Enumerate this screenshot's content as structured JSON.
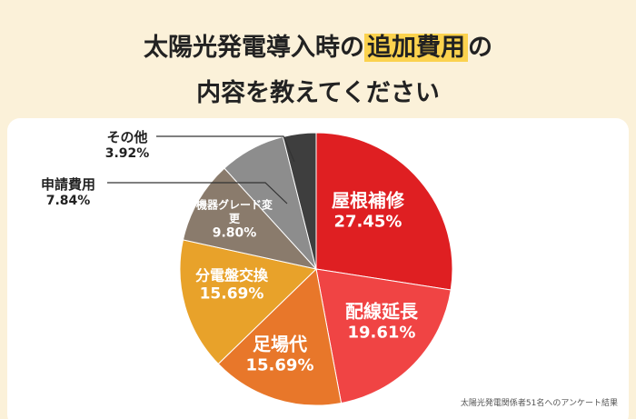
{
  "chart_data": {
    "type": "pie",
    "title": {
      "before": "太陽光発電導入時の",
      "highlight": "追加費用",
      "after": "の",
      "line2": "内容を教えてください"
    },
    "categories": [
      "屋根補修",
      "配線延長",
      "足場代",
      "分電盤交換",
      "機器グレード変更",
      "申請費用",
      "その他"
    ],
    "values": [
      27.45,
      19.61,
      15.69,
      15.69,
      9.8,
      7.84,
      3.92
    ],
    "value_labels": [
      "27.45%",
      "19.61%",
      "15.69%",
      "15.69%",
      "9.80%",
      "7.84%",
      "3.92%"
    ],
    "colors": [
      "#df1f22",
      "#f04444",
      "#e8772a",
      "#e8a22a",
      "#8a7b6c",
      "#8d8d8d",
      "#3e3e3e"
    ],
    "note": "太陽光発電関係者51名へのアンケート結果"
  }
}
